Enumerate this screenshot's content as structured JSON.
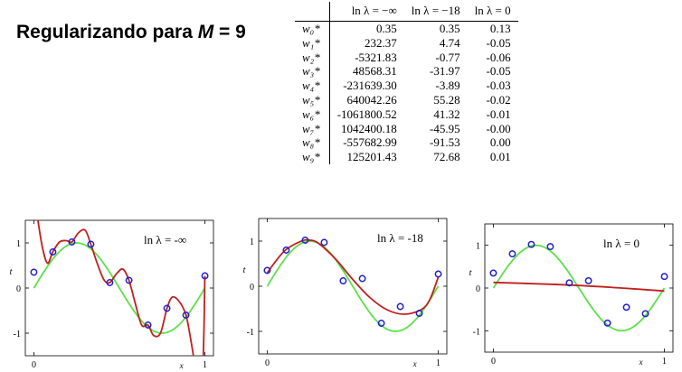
{
  "slide_title": {
    "prefix": "Regularizando para ",
    "var": "M",
    "suffix": " = 9"
  },
  "table": {
    "row_header": "",
    "columns": [
      "ln λ = −∞",
      "ln λ = −18",
      "ln λ = 0"
    ],
    "rows": [
      {
        "label": "w₀*",
        "values": [
          "0.35",
          "0.35",
          "0.13"
        ]
      },
      {
        "label": "w₁*",
        "values": [
          "232.37",
          "4.74",
          "-0.05"
        ]
      },
      {
        "label": "w₂*",
        "values": [
          "-5321.83",
          "-0.77",
          "-0.06"
        ]
      },
      {
        "label": "w₃*",
        "values": [
          "48568.31",
          "-31.97",
          "-0.05"
        ]
      },
      {
        "label": "w₄*",
        "values": [
          "-231639.30",
          "-3.89",
          "-0.03"
        ]
      },
      {
        "label": "w₅*",
        "values": [
          "640042.26",
          "55.28",
          "-0.02"
        ]
      },
      {
        "label": "w₆*",
        "values": [
          "-1061800.52",
          "41.32",
          "-0.01"
        ]
      },
      {
        "label": "w₇*",
        "values": [
          "1042400.18",
          "-45.95",
          "-0.00"
        ]
      },
      {
        "label": "w₈*",
        "values": [
          "-557682.99",
          "-91.53",
          "0.00"
        ]
      },
      {
        "label": "w₉*",
        "values": [
          "125201.43",
          "72.68",
          "0.01"
        ]
      }
    ]
  },
  "chart_data": [
    {
      "type": "line",
      "title": "ln λ = -∞",
      "xlabel": "x",
      "ylabel": "t",
      "xlim": [
        0,
        1
      ],
      "ylim": [
        -1.5,
        1.5
      ],
      "xticks": [
        "0",
        "1"
      ],
      "yticks": [
        "1",
        "0",
        "-1"
      ],
      "points": {
        "x": [
          0,
          0.111,
          0.222,
          0.333,
          0.444,
          0.556,
          0.667,
          0.778,
          0.889,
          1
        ],
        "y": [
          0.35,
          0.8,
          1.02,
          0.97,
          0.12,
          0.17,
          -0.82,
          -0.45,
          -0.6,
          0.27
        ]
      },
      "series": [
        {
          "name": "sin(2πx)",
          "color": "#5de04a",
          "kind": "sine"
        },
        {
          "name": "fit",
          "color": "#c0201e",
          "kind": "overfit",
          "x": [
            0,
            0.02,
            0.05,
            0.08,
            0.111,
            0.15,
            0.19,
            0.222,
            0.26,
            0.3,
            0.333,
            0.37,
            0.41,
            0.444,
            0.48,
            0.52,
            0.556,
            0.59,
            0.63,
            0.667,
            0.7,
            0.74,
            0.778,
            0.81,
            0.85,
            0.889,
            0.92,
            0.95,
            0.97,
            0.99,
            1.0
          ],
          "y": [
            2.2,
            1.6,
            0.9,
            0.55,
            0.8,
            1.02,
            1.05,
            1.02,
            1.22,
            1.28,
            0.97,
            0.55,
            0.18,
            0.12,
            0.3,
            0.42,
            0.17,
            -0.3,
            -0.82,
            -0.82,
            -1.05,
            -1.0,
            -0.45,
            -0.2,
            -0.3,
            -0.6,
            -1.2,
            -1.9,
            -2.2,
            -1.5,
            0.27
          ]
        }
      ]
    },
    {
      "type": "line",
      "title": "ln λ = -18",
      "xlabel": "x",
      "ylabel": "t",
      "xlim": [
        0,
        1
      ],
      "ylim": [
        -1.5,
        1.5
      ],
      "xticks": [
        "0",
        "1"
      ],
      "yticks": [
        "1",
        "0",
        "-1"
      ],
      "points": {
        "x": [
          0,
          0.111,
          0.222,
          0.333,
          0.444,
          0.556,
          0.667,
          0.778,
          0.889,
          1
        ],
        "y": [
          0.35,
          0.8,
          1.02,
          0.97,
          0.12,
          0.17,
          -0.82,
          -0.45,
          -0.6,
          0.27
        ]
      },
      "series": [
        {
          "name": "sin(2πx)",
          "color": "#5de04a",
          "kind": "sine"
        },
        {
          "name": "fit",
          "color": "#c0201e",
          "kind": "smooth",
          "x": [
            0,
            0.1,
            0.2,
            0.25,
            0.3,
            0.4,
            0.5,
            0.6,
            0.7,
            0.8,
            0.9,
            0.95,
            1.0
          ],
          "y": [
            0.3,
            0.78,
            1.0,
            1.02,
            0.95,
            0.6,
            0.15,
            -0.25,
            -0.52,
            -0.62,
            -0.52,
            -0.3,
            0.2
          ]
        }
      ]
    },
    {
      "type": "line",
      "title": "ln λ = 0",
      "xlabel": "x",
      "ylabel": "t",
      "xlim": [
        0,
        1
      ],
      "ylim": [
        -1.5,
        1.5
      ],
      "xticks": [
        "0",
        "1"
      ],
      "yticks": [
        "1",
        "0",
        "-1"
      ],
      "points": {
        "x": [
          0,
          0.111,
          0.222,
          0.333,
          0.444,
          0.556,
          0.667,
          0.778,
          0.889,
          1
        ],
        "y": [
          0.35,
          0.8,
          1.02,
          0.97,
          0.12,
          0.17,
          -0.82,
          -0.45,
          -0.6,
          0.27
        ]
      },
      "series": [
        {
          "name": "sin(2πx)",
          "color": "#5de04a",
          "kind": "sine"
        },
        {
          "name": "fit",
          "color": "#c0201e",
          "kind": "flat",
          "x": [
            0,
            0.25,
            0.5,
            0.75,
            1.0
          ],
          "y": [
            0.13,
            0.1,
            0.06,
            0.0,
            -0.07
          ]
        }
      ]
    }
  ]
}
